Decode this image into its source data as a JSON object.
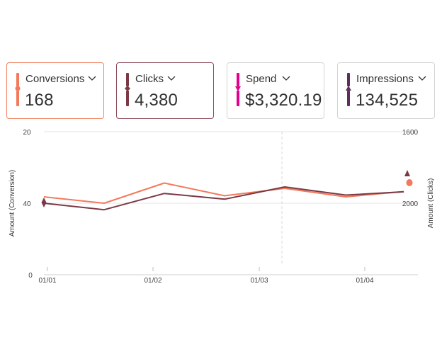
{
  "cards": [
    {
      "label": "Conversions",
      "value": "168",
      "color": "#f4795b",
      "marker": "circle",
      "selected": true,
      "icon": "chevron-down-icon"
    },
    {
      "label": "Clicks",
      "value": "4,380",
      "color": "#7a3945",
      "marker": "diamond",
      "selected": true,
      "icon": "chevron-down-icon"
    },
    {
      "label": "Spend",
      "value": "$3,320.19",
      "color": "#e3008c",
      "marker": "triangle-down",
      "selected": false,
      "icon": "chevron-down-icon"
    },
    {
      "label": "Impressions",
      "value": "134,525",
      "color": "#5c2e5b",
      "marker": "triangle-up",
      "selected": false,
      "icon": "chevron-down-icon"
    }
  ],
  "chart_data": {
    "type": "line",
    "x_tick_labels": [
      "01/01",
      "01/02",
      "01/03",
      "01/04"
    ],
    "left_axis": {
      "label": "Amount (Conversion)",
      "ticks": [
        "20",
        "40",
        "0"
      ]
    },
    "right_axis": {
      "label": "Amount (Clicks)",
      "ticks": [
        "1600",
        "2000"
      ]
    },
    "series": [
      {
        "name": "Conversions",
        "color": "#f4795b",
        "values": [
          46,
          40,
          59,
          47,
          54,
          46,
          51
        ]
      },
      {
        "name": "Clicks",
        "color": "#7a3945",
        "values": [
          40,
          32,
          52,
          45,
          60,
          50,
          54
        ]
      }
    ],
    "grid": true
  }
}
